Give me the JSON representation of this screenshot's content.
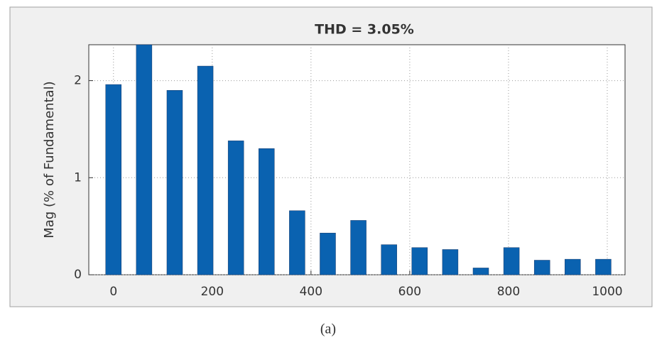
{
  "chart_data": {
    "type": "bar",
    "title": "THD = 3.05%",
    "y_label": "Mag (% of Fundamental)",
    "caption": "(a)",
    "x": [
      0,
      62,
      124,
      186,
      248,
      310,
      372,
      434,
      496,
      558,
      620,
      682,
      744,
      806,
      868,
      930,
      992
    ],
    "values": [
      1.96,
      2.37,
      1.9,
      2.15,
      1.38,
      1.3,
      0.66,
      0.43,
      0.56,
      0.31,
      0.28,
      0.26,
      0.07,
      0.28,
      0.15,
      0.16,
      0.16
    ],
    "color": "#0a62b0",
    "xlim": [
      -50,
      1036
    ],
    "ylim": [
      0,
      2.37
    ],
    "xticks": [
      0,
      200,
      400,
      600,
      800,
      1000
    ],
    "yticks": [
      0,
      1,
      2
    ],
    "grid": true
  }
}
